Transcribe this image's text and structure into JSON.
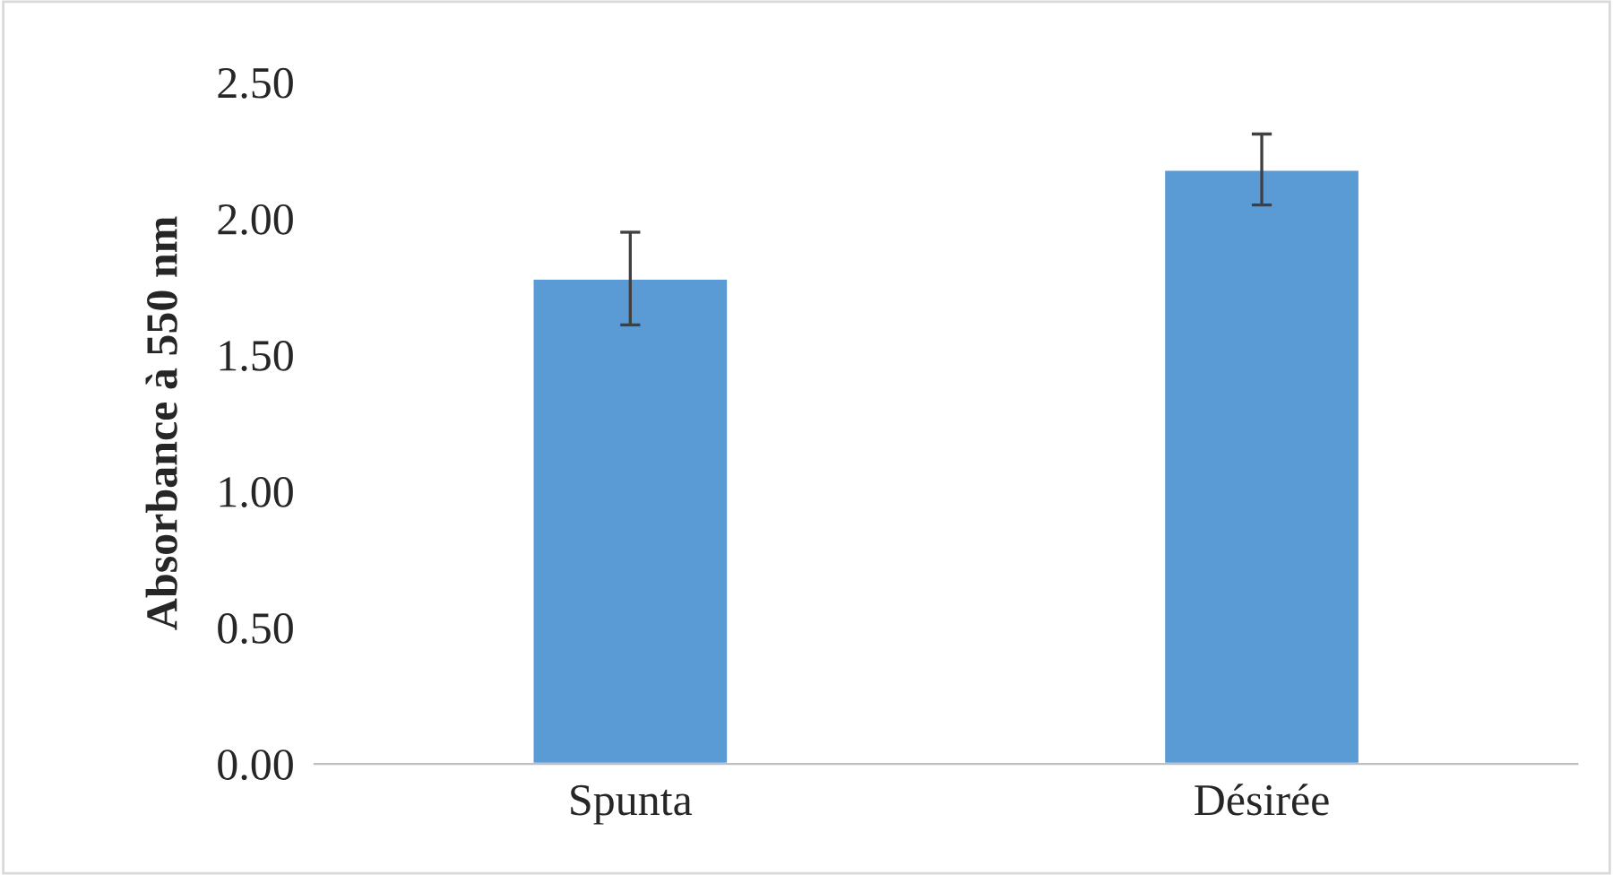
{
  "chart_data": {
    "type": "bar",
    "ylabel": "Absorbance à 550 nm",
    "categories": [
      "Spunta",
      "Désirée"
    ],
    "values": [
      1.78,
      2.18
    ],
    "errors": [
      0.17,
      0.13
    ],
    "color": "#5b9bd5",
    "ylim": [
      0,
      2.5
    ],
    "yticks": [
      {
        "value": 0,
        "label": "0.00"
      },
      {
        "value": 0.5,
        "label": "0.50"
      },
      {
        "value": 1,
        "label": "1.00"
      },
      {
        "value": 1.5,
        "label": "1.50"
      },
      {
        "value": 2,
        "label": "2.00"
      },
      {
        "value": 2.5,
        "label": "2.50"
      }
    ],
    "grid": false
  }
}
